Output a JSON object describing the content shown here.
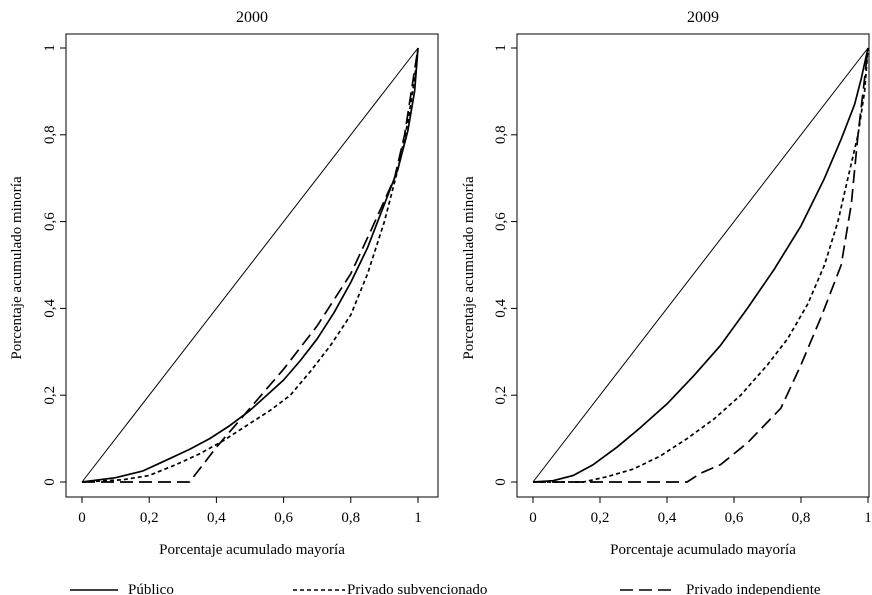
{
  "chart_data": [
    {
      "type": "line",
      "title": "2000",
      "xlabel": "Porcentaje acumulado mayoría",
      "ylabel": "Porcentaje acumulado minoría",
      "xlim": [
        0,
        1
      ],
      "ylim": [
        0,
        1
      ],
      "xticks": [
        "0",
        "0,2",
        "0,4",
        "0,6",
        "0,8",
        "1"
      ],
      "yticks": [
        "0",
        "0,2",
        "0,4",
        "0,6",
        "0,8",
        "1"
      ],
      "grid": false,
      "reference_line": [
        [
          0,
          0
        ],
        [
          1,
          1
        ]
      ],
      "series": [
        {
          "name": "Público",
          "style": "solid",
          "x": [
            0,
            0.1,
            0.18,
            0.25,
            0.32,
            0.38,
            0.44,
            0.5,
            0.55,
            0.6,
            0.65,
            0.7,
            0.75,
            0.8,
            0.85,
            0.9,
            0.94,
            0.97,
            0.99,
            1
          ],
          "y": [
            0,
            0.01,
            0.025,
            0.05,
            0.075,
            0.1,
            0.13,
            0.165,
            0.2,
            0.235,
            0.28,
            0.33,
            0.39,
            0.46,
            0.54,
            0.64,
            0.72,
            0.81,
            0.9,
            1
          ]
        },
        {
          "name": "Privado subvencionado",
          "style": "dashed",
          "x": [
            0,
            0.12,
            0.2,
            0.28,
            0.35,
            0.42,
            0.5,
            0.56,
            0.62,
            0.68,
            0.74,
            0.8,
            0.85,
            0.9,
            0.94,
            0.97,
            0.99,
            1
          ],
          "y": [
            0,
            0.005,
            0.015,
            0.04,
            0.065,
            0.095,
            0.135,
            0.165,
            0.2,
            0.255,
            0.315,
            0.385,
            0.48,
            0.6,
            0.72,
            0.83,
            0.93,
            1
          ]
        },
        {
          "name": "Privado independiente",
          "style": "longdash",
          "x": [
            0,
            0.32,
            0.4,
            0.5,
            0.6,
            0.7,
            0.8,
            0.86,
            0.93,
            0.96,
            0.98,
            1
          ],
          "y": [
            0,
            0,
            0.08,
            0.17,
            0.26,
            0.36,
            0.48,
            0.58,
            0.7,
            0.8,
            0.9,
            1
          ]
        }
      ]
    },
    {
      "type": "line",
      "title": "2009",
      "xlabel": "Porcentaje acumulado mayoría",
      "ylabel": "Porcentaje acumulado minoría",
      "xlim": [
        0,
        1
      ],
      "ylim": [
        0,
        1
      ],
      "xticks": [
        "0",
        "0,2",
        "0,4",
        "0,6",
        "0,8",
        "1"
      ],
      "yticks": [
        "0",
        "0,2",
        "0,4",
        "0,6",
        "0,8",
        "1"
      ],
      "grid": false,
      "reference_line": [
        [
          0,
          0
        ],
        [
          1,
          1
        ]
      ],
      "series": [
        {
          "name": "Público",
          "style": "solid",
          "x": [
            0,
            0.06,
            0.12,
            0.18,
            0.25,
            0.32,
            0.4,
            0.48,
            0.56,
            0.64,
            0.72,
            0.8,
            0.87,
            0.92,
            0.96,
            0.98,
            1
          ],
          "y": [
            0,
            0.003,
            0.015,
            0.04,
            0.08,
            0.125,
            0.18,
            0.245,
            0.315,
            0.4,
            0.49,
            0.59,
            0.7,
            0.79,
            0.87,
            0.93,
            1
          ]
        },
        {
          "name": "Privado subvencionado",
          "style": "dashed",
          "x": [
            0,
            0.15,
            0.22,
            0.3,
            0.38,
            0.46,
            0.54,
            0.62,
            0.7,
            0.76,
            0.82,
            0.87,
            0.91,
            0.94,
            0.97,
            0.99,
            1
          ],
          "y": [
            0,
            0,
            0.012,
            0.03,
            0.06,
            0.1,
            0.145,
            0.2,
            0.27,
            0.33,
            0.41,
            0.5,
            0.6,
            0.7,
            0.8,
            0.9,
            1
          ]
        },
        {
          "name": "Privado independiente",
          "style": "longdash",
          "x": [
            0,
            0.2,
            0.46,
            0.5,
            0.56,
            0.64,
            0.74,
            0.8,
            0.86,
            0.92,
            0.95,
            0.97,
            0.99,
            1
          ],
          "y": [
            0,
            0,
            0,
            0.02,
            0.04,
            0.09,
            0.17,
            0.27,
            0.38,
            0.5,
            0.64,
            0.8,
            0.93,
            1
          ]
        }
      ]
    }
  ],
  "legend": {
    "items": [
      {
        "label": "Público",
        "style": "solid"
      },
      {
        "label": "Privado subvencionado",
        "style": "dashed"
      },
      {
        "label": "Privado independiente",
        "style": "longdash"
      }
    ]
  }
}
